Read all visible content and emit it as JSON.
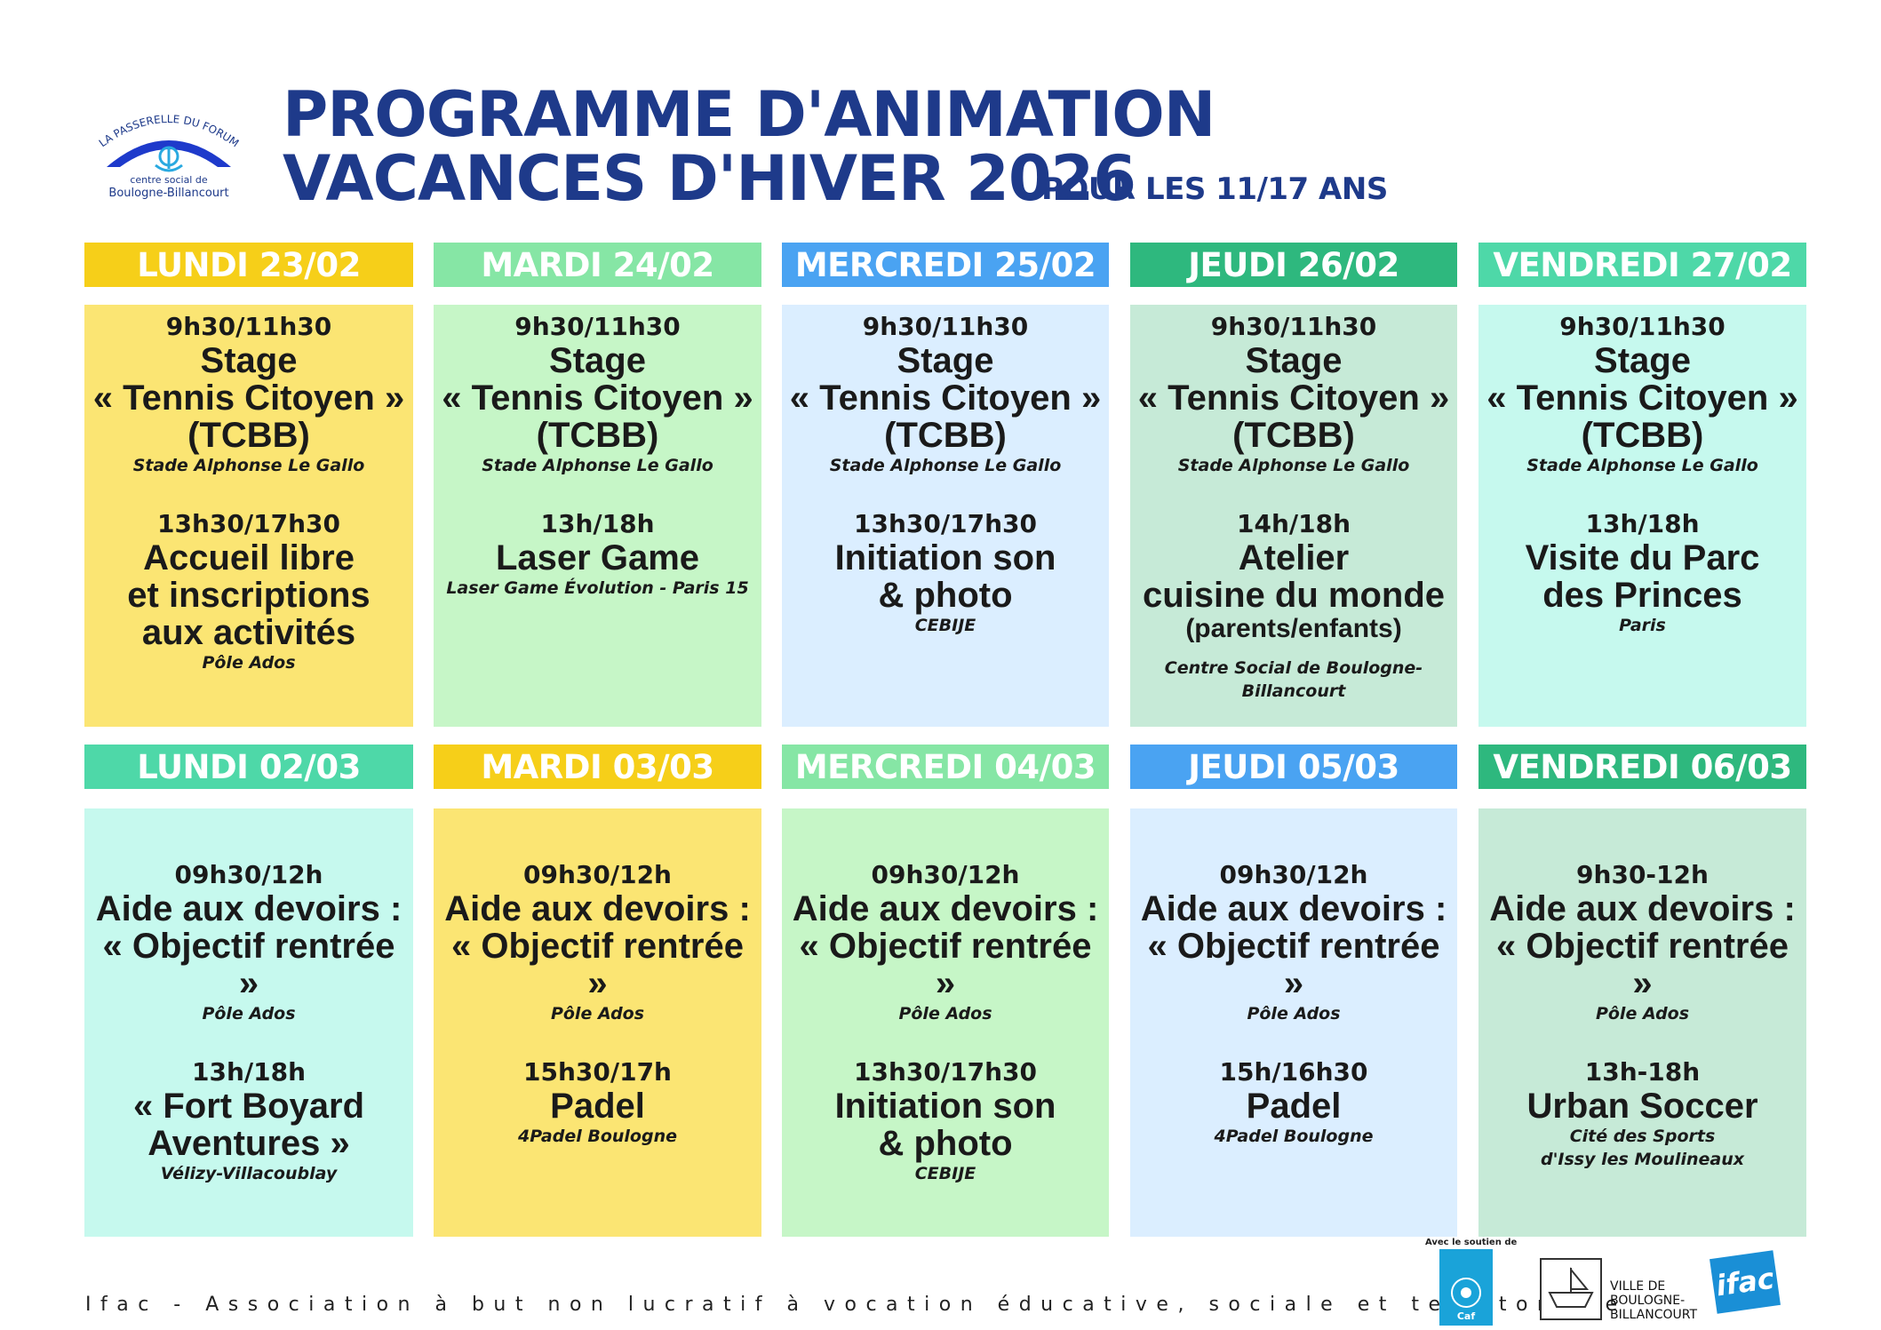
{
  "header": {
    "logo_arc_text": "LA PASSERELLE DU FORUM",
    "logo_sub1": "centre social de",
    "logo_sub2": "Boulogne-Billancourt",
    "title_line1": "PROGRAMME D'ANIMATION",
    "title_line2": "VACANCES D'HIVER 2026",
    "subtitle": "POUR LES 11/17 ANS"
  },
  "colors": {
    "yellow_head": "#f6cf19",
    "yellow_card": "#fbe573",
    "lightgreen_head": "#86e6a5",
    "lightgreen_card": "#c6f6c7",
    "blue_head": "#4aa3f2",
    "blue_card": "#dbeeff",
    "green_head": "#2eb87e",
    "green_card": "#c6ead7",
    "teal_head": "#4ed8a8",
    "teal_card": "#c6f9ee"
  },
  "week1": [
    {
      "day": "LUNDI 23/02",
      "slots": [
        {
          "time": "9h30/11h30",
          "lines": [
            "Stage",
            "« Tennis Citoyen »",
            "(TCBB)"
          ],
          "place": "Stade Alphonse Le Gallo"
        },
        {
          "time": "13h30/17h30",
          "lines": [
            "Accueil libre",
            "et inscriptions",
            "aux activités"
          ],
          "place": "Pôle Ados"
        }
      ]
    },
    {
      "day": "MARDI 24/02",
      "slots": [
        {
          "time": "9h30/11h30",
          "lines": [
            "Stage",
            "« Tennis Citoyen »",
            "(TCBB)"
          ],
          "place": "Stade Alphonse Le Gallo"
        },
        {
          "time": "13h/18h",
          "lines": [
            "Laser Game"
          ],
          "place": "Laser Game Évolution - Paris 15"
        }
      ]
    },
    {
      "day": "MERCREDI 25/02",
      "slots": [
        {
          "time": "9h30/11h30",
          "lines": [
            "Stage",
            "« Tennis Citoyen »",
            "(TCBB)"
          ],
          "place": "Stade Alphonse Le Gallo"
        },
        {
          "time": "13h30/17h30",
          "lines": [
            "Initiation son",
            "& photo"
          ],
          "place": "CEBIJE"
        }
      ]
    },
    {
      "day": "JEUDI 26/02",
      "slots": [
        {
          "time": "9h30/11h30",
          "lines": [
            "Stage",
            "« Tennis Citoyen »",
            "(TCBB)"
          ],
          "place": "Stade Alphonse Le Gallo"
        },
        {
          "time": "14h/18h",
          "lines": [
            "Atelier",
            "cuisine du monde"
          ],
          "sub": "(parents/enfants)",
          "place": "Centre Social de Boulogne-Billancourt"
        }
      ]
    },
    {
      "day": "VENDREDI 27/02",
      "slots": [
        {
          "time": "9h30/11h30",
          "lines": [
            "Stage",
            "« Tennis Citoyen »",
            "(TCBB)"
          ],
          "place": "Stade Alphonse Le Gallo"
        },
        {
          "time": "13h/18h",
          "lines": [
            "Visite du Parc",
            "des Princes"
          ],
          "place": "Paris"
        }
      ]
    }
  ],
  "week2": [
    {
      "day": "LUNDI 02/03",
      "slots": [
        {
          "time": "09h30/12h",
          "lines": [
            "Aide aux devoirs :",
            "« Objectif rentrée »"
          ],
          "place": "Pôle Ados"
        },
        {
          "time": "13h/18h",
          "lines": [
            "« Fort Boyard",
            "Aventures »"
          ],
          "place": "Vélizy-Villacoublay"
        }
      ]
    },
    {
      "day": "MARDI 03/03",
      "slots": [
        {
          "time": "09h30/12h",
          "lines": [
            "Aide aux devoirs :",
            "« Objectif rentrée »"
          ],
          "place": "Pôle Ados"
        },
        {
          "time": "15h30/17h",
          "lines": [
            "Padel"
          ],
          "place": "4Padel Boulogne"
        }
      ]
    },
    {
      "day": "MERCREDI 04/03",
      "slots": [
        {
          "time": "09h30/12h",
          "lines": [
            "Aide aux devoirs :",
            "« Objectif rentrée »"
          ],
          "place": "Pôle Ados"
        },
        {
          "time": "13h30/17h30",
          "lines": [
            "Initiation son",
            "& photo"
          ],
          "place": "CEBIJE"
        }
      ]
    },
    {
      "day": "JEUDI 05/03",
      "slots": [
        {
          "time": "09h30/12h",
          "lines": [
            "Aide aux devoirs :",
            "« Objectif rentrée »"
          ],
          "place": "Pôle Ados"
        },
        {
          "time": "15h/16h30",
          "lines": [
            "Padel"
          ],
          "place": "4Padel Boulogne"
        }
      ]
    },
    {
      "day": "VENDREDI 06/03",
      "slots": [
        {
          "time": "9h30-12h",
          "lines": [
            "Aide aux devoirs :",
            "« Objectif rentrée »"
          ],
          "place": "Pôle Ados"
        },
        {
          "time": "13h-18h",
          "lines": [
            "Urban Soccer"
          ],
          "place": "Cité des Sports",
          "place2": "d'Issy les Moulineaux"
        }
      ]
    }
  ],
  "footer": {
    "association": "Ifac - Association à but non lucratif à vocation éducative, sociale et territoriale",
    "support_label": "Avec le soutien de",
    "caf": "Caf",
    "city_line1": "VILLE DE",
    "city_line2": "BOULOGNE-",
    "city_line3": "BILLANCOURT",
    "ifac": "ifac"
  }
}
